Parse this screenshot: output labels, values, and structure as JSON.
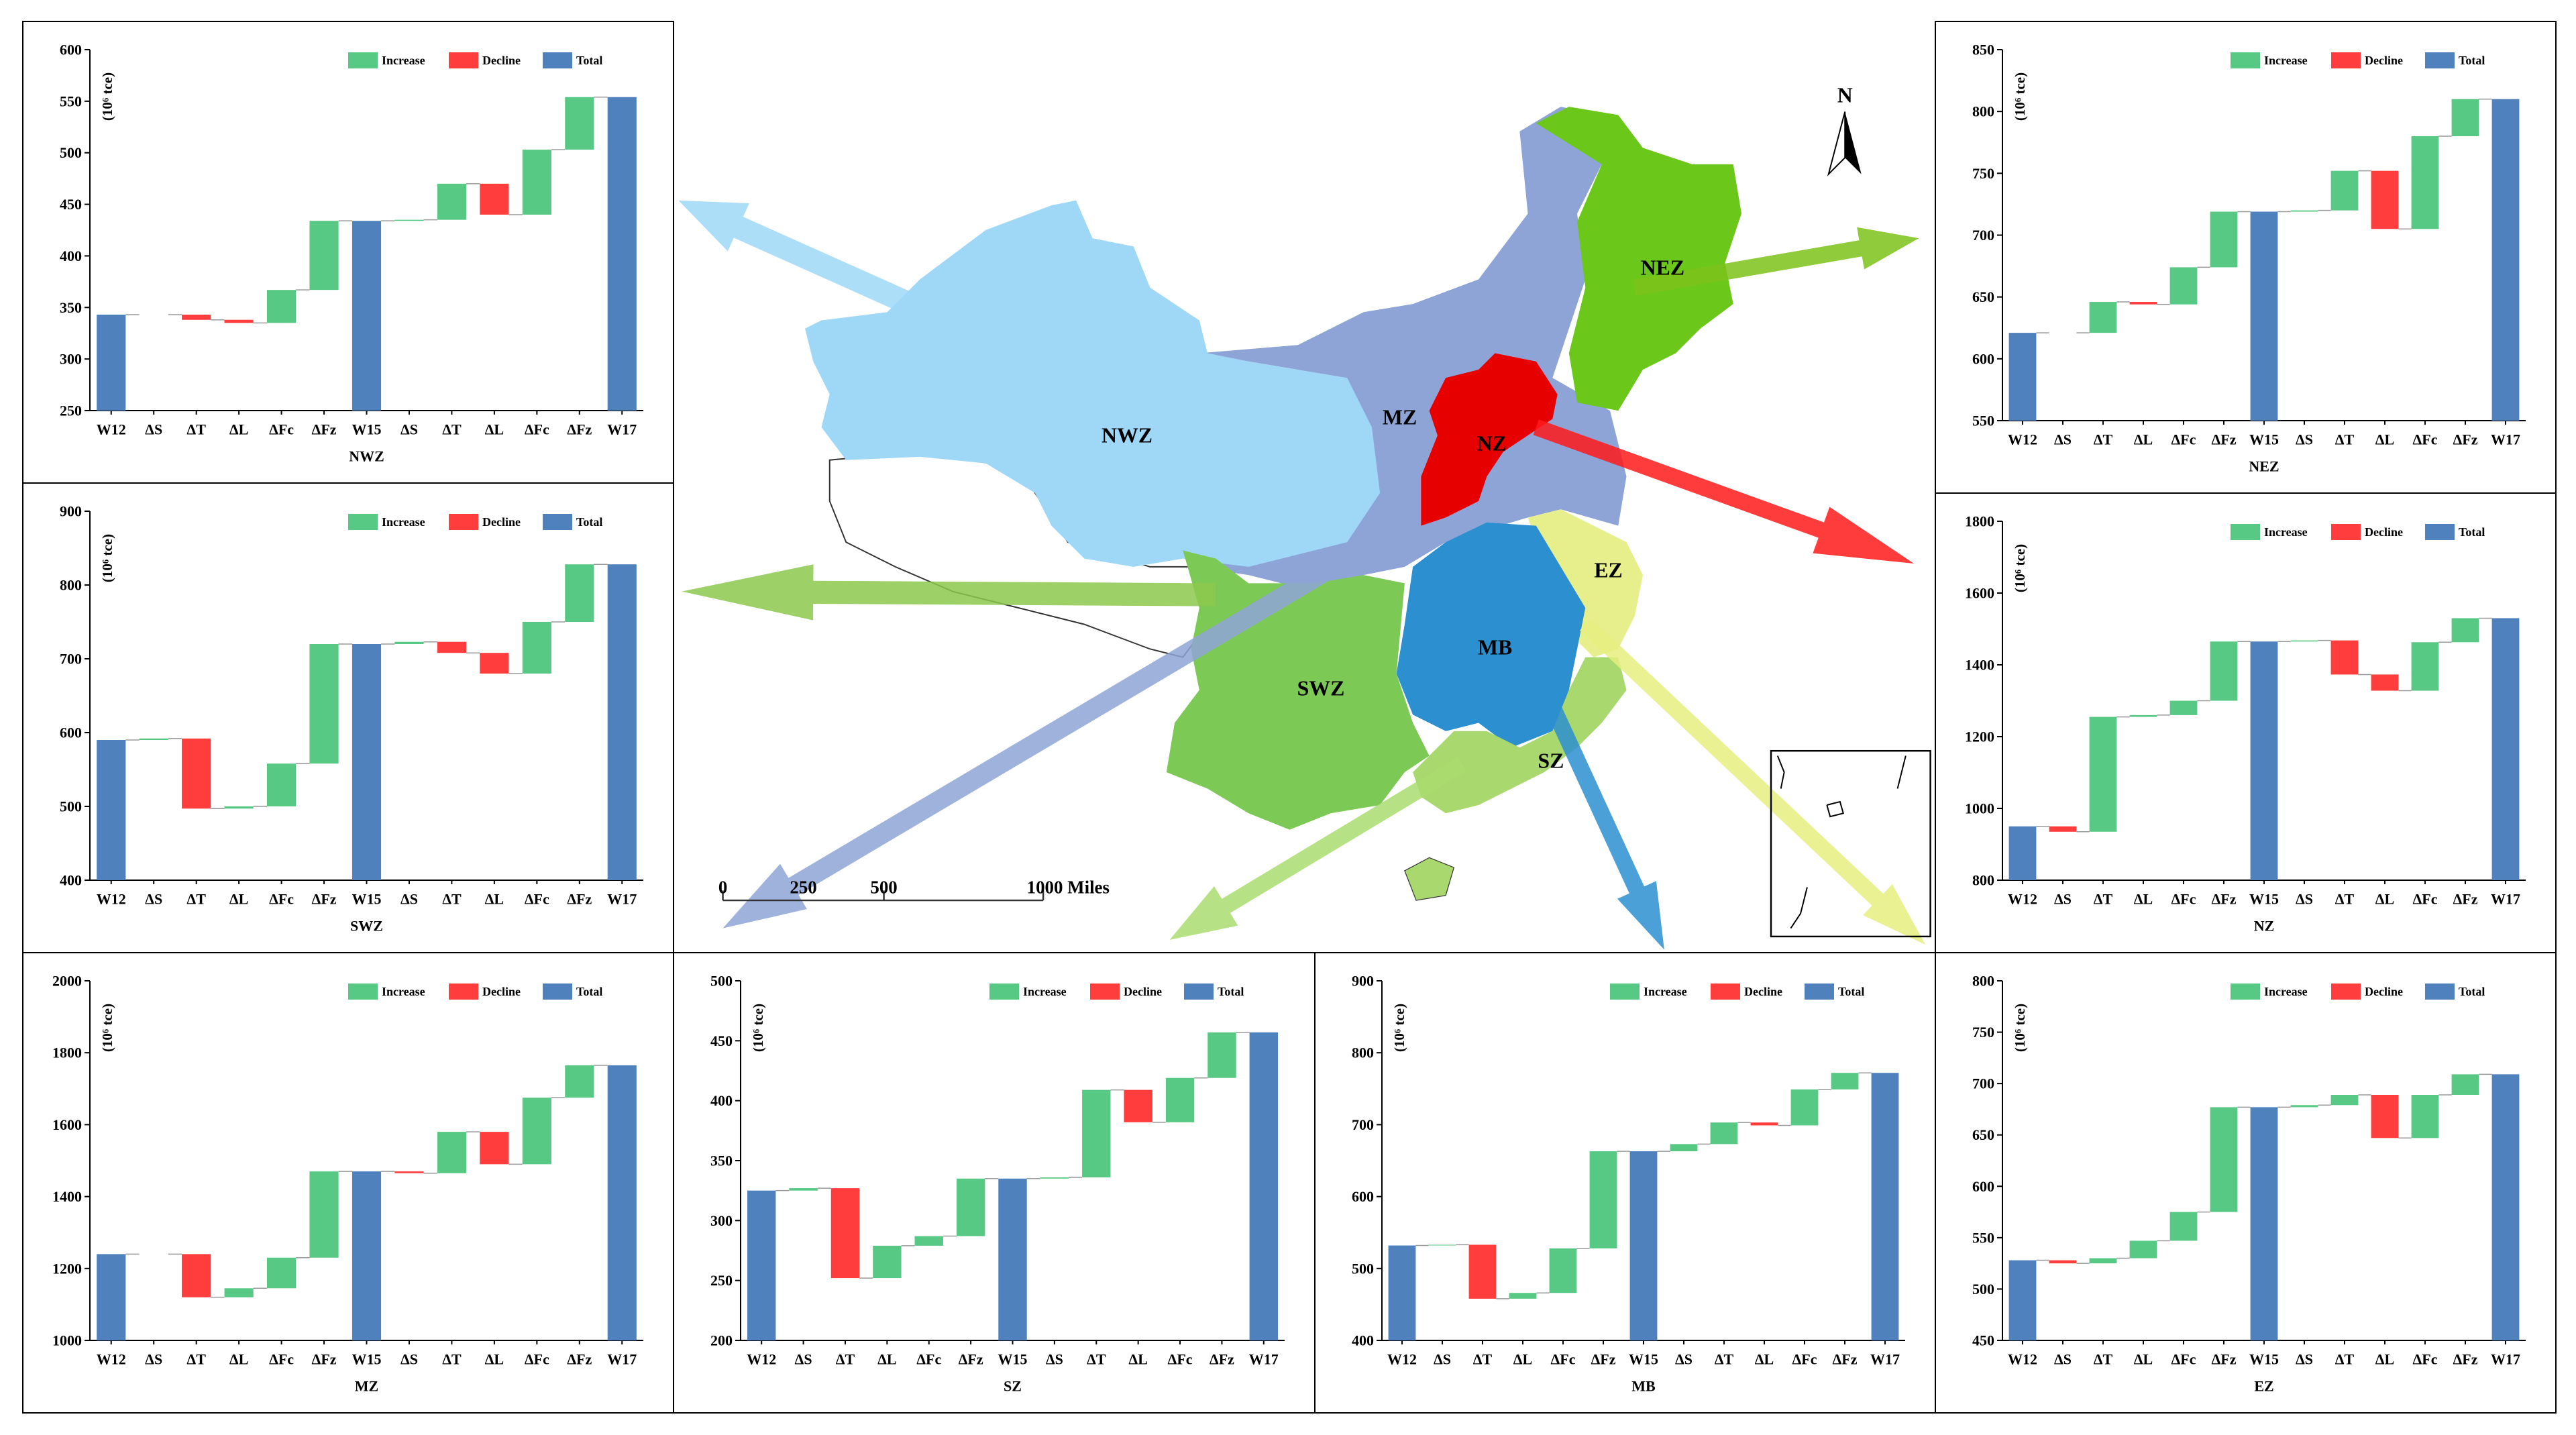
{
  "chart_data": [
    {
      "type": "waterfall",
      "x_label": "NWZ",
      "y_label": "(10⁶ tce)",
      "legend": "upper right",
      "categories": [
        "W12",
        "ΔS",
        "ΔT",
        "ΔL",
        "ΔFc",
        "ΔFz",
        "W15",
        "ΔS",
        "ΔT",
        "ΔL",
        "ΔFc",
        "ΔFz",
        "W17"
      ],
      "series": [
        {
          "name": "Increase",
          "color": "#58c984",
          "values": [
            null,
            0,
            null,
            null,
            32,
            67,
            null,
            1,
            35,
            null,
            63,
            51,
            null
          ]
        },
        {
          "name": "Decline",
          "color": "#ff3d3d",
          "values": [
            null,
            null,
            -5,
            -3,
            null,
            null,
            null,
            null,
            null,
            -30,
            null,
            null,
            null
          ]
        },
        {
          "name": "Total",
          "color": "#4f81bd",
          "values": [
            343,
            null,
            null,
            null,
            null,
            null,
            434,
            null,
            null,
            null,
            null,
            null,
            554
          ]
        }
      ],
      "ylim": [
        250,
        600
      ],
      "yticks": [
        250,
        300,
        350,
        400,
        450,
        500,
        550,
        600
      ]
    },
    {
      "type": "waterfall",
      "x_label": "SWZ",
      "y_label": "(10⁶ tce)",
      "legend": "upper right",
      "categories": [
        "W12",
        "ΔS",
        "ΔT",
        "ΔL",
        "ΔFc",
        "ΔFz",
        "W15",
        "ΔS",
        "ΔT",
        "ΔL",
        "ΔFc",
        "ΔFz",
        "W17"
      ],
      "series": [
        {
          "name": "Increase",
          "color": "#58c984",
          "values": [
            null,
            2,
            null,
            3,
            58,
            162,
            null,
            3,
            null,
            null,
            70,
            78,
            null
          ]
        },
        {
          "name": "Decline",
          "color": "#ff3d3d",
          "values": [
            null,
            null,
            -95,
            null,
            null,
            null,
            null,
            null,
            -15,
            -28,
            null,
            null,
            null
          ]
        },
        {
          "name": "Total",
          "color": "#4f81bd",
          "values": [
            590,
            null,
            null,
            null,
            null,
            null,
            720,
            null,
            null,
            null,
            null,
            null,
            828
          ]
        }
      ],
      "ylim": [
        400,
        900
      ],
      "yticks": [
        400,
        500,
        600,
        700,
        800,
        900
      ]
    },
    {
      "type": "waterfall",
      "x_label": "MZ",
      "y_label": "(10⁶ tce)",
      "legend": "upper right",
      "categories": [
        "W12",
        "ΔS",
        "ΔT",
        "ΔL",
        "ΔFc",
        "ΔFz",
        "W15",
        "ΔS",
        "ΔT",
        "ΔL",
        "ΔFc",
        "ΔFz",
        "W17"
      ],
      "series": [
        {
          "name": "Increase",
          "color": "#58c984",
          "values": [
            null,
            0,
            null,
            25,
            85,
            240,
            null,
            null,
            115,
            null,
            185,
            90,
            null
          ]
        },
        {
          "name": "Decline",
          "color": "#ff3d3d",
          "values": [
            null,
            null,
            -120,
            null,
            null,
            null,
            null,
            -5,
            null,
            -90,
            null,
            null,
            null
          ]
        },
        {
          "name": "Total",
          "color": "#4f81bd",
          "values": [
            1240,
            null,
            null,
            null,
            null,
            null,
            1470,
            null,
            null,
            null,
            null,
            null,
            1765
          ]
        }
      ],
      "ylim": [
        1000,
        2000
      ],
      "yticks": [
        1000,
        1200,
        1400,
        1600,
        1800,
        2000
      ]
    },
    {
      "type": "waterfall",
      "x_label": "SZ",
      "y_label": "(10⁶ tce)",
      "legend": "upper right",
      "categories": [
        "W12",
        "ΔS",
        "ΔT",
        "ΔL",
        "ΔFc",
        "ΔFz",
        "W15",
        "ΔS",
        "ΔT",
        "ΔL",
        "ΔFc",
        "ΔFz",
        "W17"
      ],
      "series": [
        {
          "name": "Increase",
          "color": "#58c984",
          "values": [
            null,
            2,
            null,
            27,
            8,
            48,
            null,
            1,
            73,
            null,
            37,
            38,
            null
          ]
        },
        {
          "name": "Decline",
          "color": "#ff3d3d",
          "values": [
            null,
            null,
            -75,
            null,
            null,
            null,
            null,
            null,
            null,
            -27,
            null,
            null,
            null
          ]
        },
        {
          "name": "Total",
          "color": "#4f81bd",
          "values": [
            325,
            null,
            null,
            null,
            null,
            null,
            335,
            null,
            null,
            null,
            null,
            null,
            457
          ]
        }
      ],
      "ylim": [
        200,
        500
      ],
      "yticks": [
        200,
        250,
        300,
        350,
        400,
        450,
        500
      ]
    },
    {
      "type": "waterfall",
      "x_label": "MB",
      "y_label": "(10⁶ tce)",
      "legend": "upper right",
      "categories": [
        "W12",
        "ΔS",
        "ΔT",
        "ΔL",
        "ΔFc",
        "ΔFz",
        "W15",
        "ΔS",
        "ΔT",
        "ΔL",
        "ΔFc",
        "ΔFz",
        "W17"
      ],
      "series": [
        {
          "name": "Increase",
          "color": "#58c984",
          "values": [
            null,
            1,
            null,
            8,
            62,
            135,
            null,
            10,
            30,
            null,
            50,
            23,
            null
          ]
        },
        {
          "name": "Decline",
          "color": "#ff3d3d",
          "values": [
            null,
            null,
            -75,
            null,
            null,
            null,
            null,
            null,
            null,
            -4,
            null,
            null,
            null
          ]
        },
        {
          "name": "Total",
          "color": "#4f81bd",
          "values": [
            532,
            null,
            null,
            null,
            null,
            null,
            663,
            null,
            null,
            null,
            null,
            null,
            772
          ]
        }
      ],
      "ylim": [
        400,
        900
      ],
      "yticks": [
        400,
        500,
        600,
        700,
        800,
        900
      ]
    },
    {
      "type": "waterfall",
      "x_label": "EZ",
      "y_label": "(10⁶ tce)",
      "legend": "upper right",
      "categories": [
        "W12",
        "ΔS",
        "ΔT",
        "ΔL",
        "ΔFc",
        "ΔFz",
        "W15",
        "ΔS",
        "ΔT",
        "ΔL",
        "ΔFc",
        "ΔFz",
        "W17"
      ],
      "series": [
        {
          "name": "Increase",
          "color": "#58c984",
          "values": [
            null,
            null,
            5,
            17,
            28,
            102,
            null,
            2,
            10,
            null,
            42,
            20,
            null
          ]
        },
        {
          "name": "Decline",
          "color": "#ff3d3d",
          "values": [
            null,
            -3,
            null,
            null,
            null,
            null,
            null,
            null,
            null,
            -42,
            null,
            null,
            null
          ]
        },
        {
          "name": "Total",
          "color": "#4f81bd",
          "values": [
            528,
            null,
            null,
            null,
            null,
            null,
            677,
            null,
            null,
            null,
            null,
            null,
            709
          ]
        }
      ],
      "ylim": [
        450,
        800
      ],
      "yticks": [
        450,
        500,
        550,
        600,
        650,
        700,
        750,
        800
      ]
    },
    {
      "type": "waterfall",
      "x_label": "NZ",
      "y_label": "(10⁶ tce)",
      "legend": "upper right",
      "categories": [
        "W12",
        "ΔS",
        "ΔT",
        "ΔL",
        "ΔFc",
        "ΔFz",
        "W15",
        "ΔS",
        "ΔT",
        "ΔL",
        "ΔFc",
        "ΔFz",
        "W17"
      ],
      "series": [
        {
          "name": "Increase",
          "color": "#58c984",
          "values": [
            null,
            null,
            320,
            5,
            40,
            165,
            null,
            3,
            null,
            null,
            135,
            67,
            null
          ]
        },
        {
          "name": "Decline",
          "color": "#ff3d3d",
          "values": [
            null,
            -15,
            null,
            null,
            null,
            null,
            null,
            null,
            -95,
            -45,
            null,
            null,
            null
          ]
        },
        {
          "name": "Total",
          "color": "#4f81bd",
          "values": [
            950,
            null,
            null,
            null,
            null,
            null,
            1465,
            null,
            null,
            null,
            null,
            null,
            1530
          ]
        }
      ],
      "ylim": [
        800,
        1800
      ],
      "yticks": [
        800,
        1000,
        1200,
        1400,
        1600,
        1800
      ]
    },
    {
      "type": "waterfall",
      "x_label": "NEZ",
      "y_label": "(10⁶ tce)",
      "legend": "upper right",
      "categories": [
        "W12",
        "ΔS",
        "ΔT",
        "ΔL",
        "ΔFc",
        "ΔFz",
        "W15",
        "ΔS",
        "ΔT",
        "ΔL",
        "ΔFc",
        "ΔFz",
        "W17"
      ],
      "series": [
        {
          "name": "Increase",
          "color": "#58c984",
          "values": [
            null,
            0,
            25,
            null,
            30,
            45,
            null,
            1,
            32,
            null,
            75,
            30,
            null
          ]
        },
        {
          "name": "Decline",
          "color": "#ff3d3d",
          "values": [
            null,
            null,
            null,
            -2,
            null,
            null,
            null,
            null,
            null,
            -47,
            null,
            null,
            null
          ]
        },
        {
          "name": "Total",
          "color": "#4f81bd",
          "values": [
            621,
            null,
            null,
            null,
            null,
            null,
            719,
            null,
            null,
            null,
            null,
            null,
            810
          ]
        }
      ],
      "ylim": [
        550,
        850
      ],
      "yticks": [
        550,
        600,
        650,
        700,
        750,
        800,
        850
      ]
    }
  ],
  "map": {
    "region_labels": [
      "NWZ",
      "MZ",
      "NZ",
      "NEZ",
      "EZ",
      "MB",
      "SWZ",
      "SZ"
    ],
    "north": "N",
    "scale_labels": [
      "0",
      "250",
      "500",
      "1000 Miles"
    ]
  }
}
